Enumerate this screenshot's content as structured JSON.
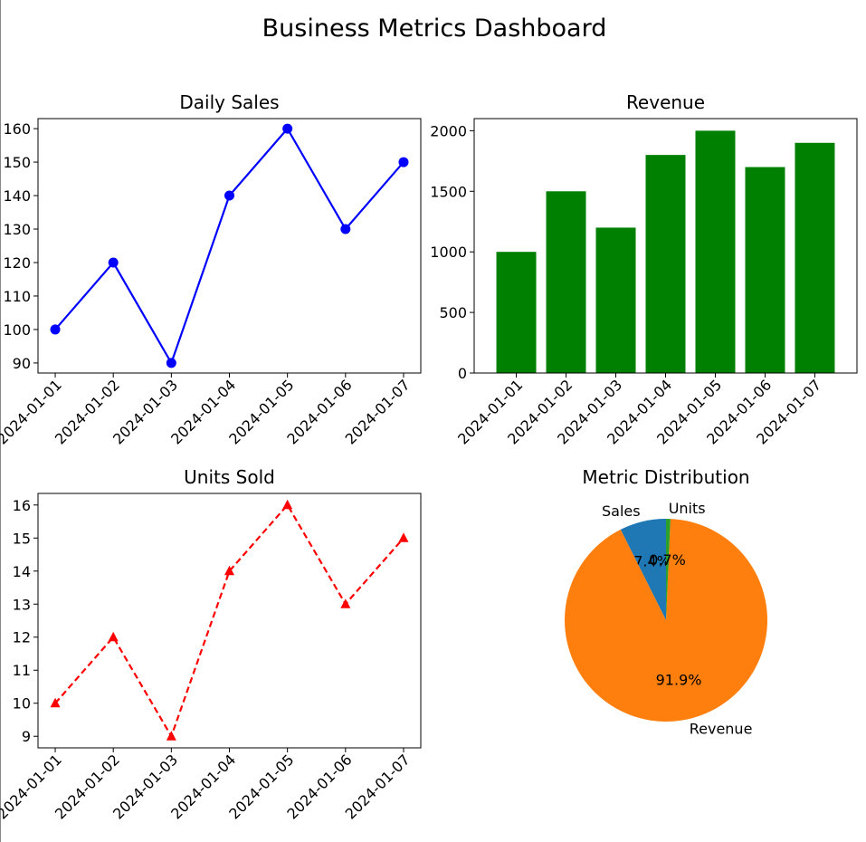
{
  "title": "Business Metrics Dashboard",
  "chart_data": [
    {
      "type": "line",
      "title": "Daily Sales",
      "xlabel": "",
      "ylabel": "",
      "categories": [
        "2024-01-01",
        "2024-01-02",
        "2024-01-03",
        "2024-01-04",
        "2024-01-05",
        "2024-01-06",
        "2024-01-07"
      ],
      "series": [
        {
          "values": [
            100,
            120,
            90,
            140,
            160,
            130,
            150
          ],
          "color": "#0000ff",
          "marker": "circle",
          "linestyle": "solid"
        }
      ],
      "ylim": [
        87,
        163
      ],
      "yticks": [
        90,
        100,
        110,
        120,
        130,
        140,
        150,
        160
      ],
      "grid": false
    },
    {
      "type": "bar",
      "title": "Revenue",
      "xlabel": "",
      "ylabel": "",
      "categories": [
        "2024-01-01",
        "2024-01-02",
        "2024-01-03",
        "2024-01-04",
        "2024-01-05",
        "2024-01-06",
        "2024-01-07"
      ],
      "values": [
        1000,
        1500,
        1200,
        1800,
        2000,
        1700,
        1900
      ],
      "color": "#008000",
      "ylim": [
        0,
        2100
      ],
      "yticks": [
        0,
        500,
        1000,
        1500,
        2000
      ],
      "grid": false
    },
    {
      "type": "line",
      "title": "Units Sold",
      "xlabel": "",
      "ylabel": "",
      "categories": [
        "2024-01-01",
        "2024-01-02",
        "2024-01-03",
        "2024-01-04",
        "2024-01-05",
        "2024-01-06",
        "2024-01-07"
      ],
      "series": [
        {
          "values": [
            10,
            12,
            9,
            14,
            16,
            13,
            15
          ],
          "color": "#ff0000",
          "marker": "triangle",
          "linestyle": "dashed"
        }
      ],
      "ylim": [
        8.65,
        16.35
      ],
      "yticks": [
        9,
        10,
        11,
        12,
        13,
        14,
        15,
        16
      ],
      "grid": false
    },
    {
      "type": "pie",
      "title": "Metric Distribution",
      "labels": [
        "Sales",
        "Revenue",
        "Units"
      ],
      "values": [
        7.4,
        91.9,
        0.7
      ],
      "value_labels": [
        "7.4%",
        "91.9%",
        "0.7%"
      ],
      "colors": [
        "#1f77b4",
        "#ff7f0e",
        "#2ca02c"
      ],
      "startangle": 90
    }
  ]
}
